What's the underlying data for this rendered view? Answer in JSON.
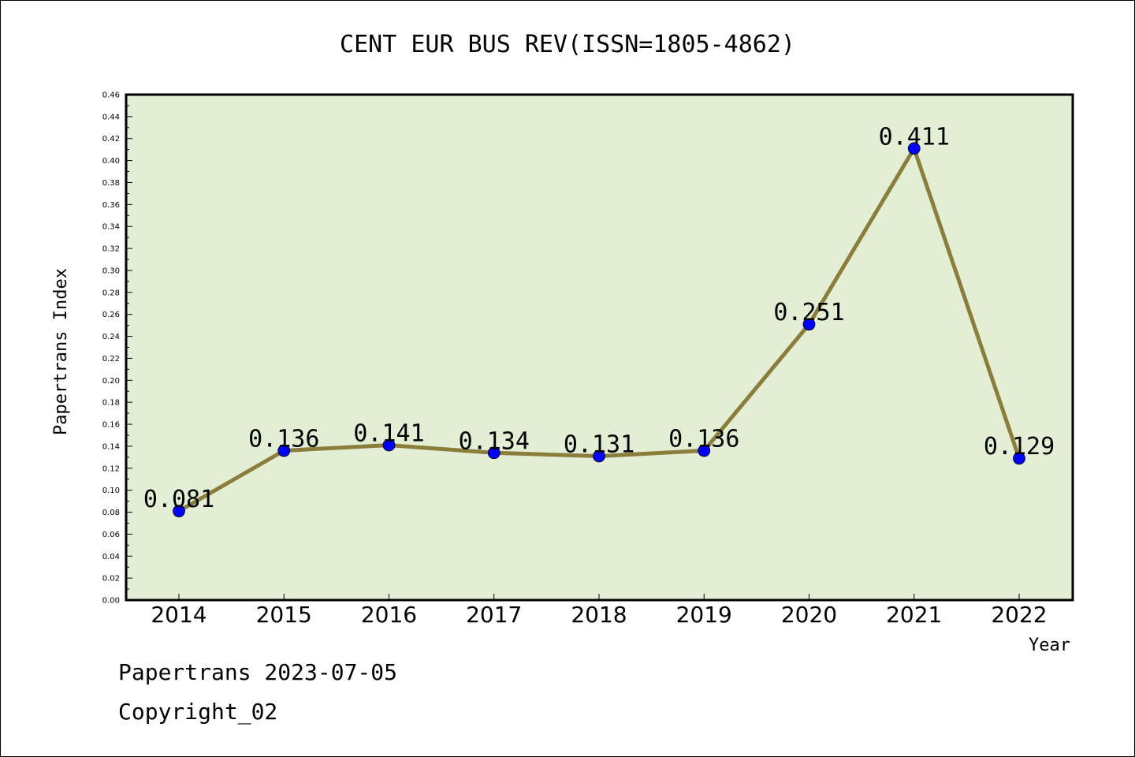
{
  "chart_data": {
    "type": "line",
    "title": "CENT EUR BUS REV(ISSN=1805-4862)",
    "xlabel": "Year",
    "ylabel": "Papertrans Index",
    "categories": [
      "2014",
      "2015",
      "2016",
      "2017",
      "2018",
      "2019",
      "2020",
      "2021",
      "2022"
    ],
    "values": [
      0.081,
      0.136,
      0.141,
      0.134,
      0.131,
      0.136,
      0.251,
      0.411,
      0.129
    ],
    "data_labels": [
      "0.081",
      "0.136",
      "0.141",
      "0.134",
      "0.131",
      "0.136",
      "0.251",
      "0.411",
      "0.129"
    ],
    "ylim": [
      0,
      0.46
    ],
    "ytick_labels": [
      "0.00",
      "0.02",
      "0.04",
      "0.06",
      "0.08",
      "0.10",
      "0.12",
      "0.14",
      "0.16",
      "0.18",
      "0.20",
      "0.22",
      "0.24",
      "0.26",
      "0.28",
      "0.30",
      "0.32",
      "0.34",
      "0.36",
      "0.38",
      "0.40",
      "0.42",
      "0.44",
      "0.46"
    ],
    "grid": false,
    "colors": {
      "plot_background": "#e2efd5",
      "line": "#8b7d3a",
      "marker": "#0000ff"
    }
  },
  "footer": {
    "line1": "Papertrans 2023-07-05",
    "line2": "Copyright_02"
  }
}
